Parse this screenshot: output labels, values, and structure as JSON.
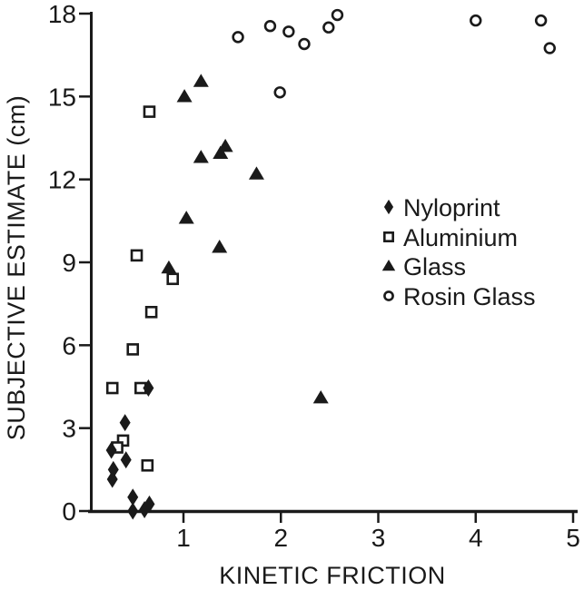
{
  "figure": {
    "background": "#ffffff",
    "ink": "#1a1a1a"
  },
  "chart_data": {
    "type": "scatter",
    "title": "",
    "xlabel": "KINETIC FRICTION",
    "ylabel": "SUBJECTIVE ESTIMATE (cm)",
    "xlim": [
      0,
      5
    ],
    "ylim": [
      0,
      18
    ],
    "x_ticks": [
      1,
      2,
      3,
      4,
      5
    ],
    "y_ticks": [
      0,
      3,
      6,
      9,
      12,
      15,
      18
    ],
    "grid": false,
    "legend_position": "middle-right",
    "series": [
      {
        "name": "Nyloprint",
        "marker": "filled-diamond",
        "points": [
          [
            0.64,
            4.45
          ],
          [
            0.4,
            3.2
          ],
          [
            0.26,
            2.2
          ],
          [
            0.41,
            1.85
          ],
          [
            0.28,
            1.5
          ],
          [
            0.27,
            1.15
          ],
          [
            0.48,
            0.5
          ],
          [
            0.48,
            0.0
          ],
          [
            0.6,
            0.05
          ],
          [
            0.65,
            0.25
          ]
        ]
      },
      {
        "name": "Aluminium",
        "marker": "open-square",
        "points": [
          [
            0.65,
            14.45
          ],
          [
            0.52,
            9.25
          ],
          [
            0.89,
            8.4
          ],
          [
            0.67,
            7.2
          ],
          [
            0.48,
            5.85
          ],
          [
            0.27,
            4.45
          ],
          [
            0.56,
            4.45
          ],
          [
            0.38,
            2.55
          ],
          [
            0.32,
            2.3
          ],
          [
            0.63,
            1.65
          ]
        ]
      },
      {
        "name": "Glass",
        "marker": "filled-triangle",
        "points": [
          [
            1.18,
            15.55
          ],
          [
            1.01,
            15.0
          ],
          [
            1.43,
            13.2
          ],
          [
            1.38,
            12.95
          ],
          [
            1.18,
            12.8
          ],
          [
            1.75,
            12.2
          ],
          [
            1.03,
            10.6
          ],
          [
            1.37,
            9.55
          ],
          [
            0.85,
            8.8
          ],
          [
            2.41,
            4.1
          ]
        ]
      },
      {
        "name": "Rosin Glass",
        "marker": "open-circle",
        "points": [
          [
            1.56,
            17.15
          ],
          [
            1.89,
            17.55
          ],
          [
            2.08,
            17.35
          ],
          [
            2.24,
            16.9
          ],
          [
            2.49,
            17.5
          ],
          [
            2.58,
            17.95
          ],
          [
            1.99,
            15.15
          ],
          [
            4.0,
            17.75
          ],
          [
            4.67,
            17.75
          ],
          [
            4.76,
            16.75
          ]
        ]
      }
    ]
  }
}
